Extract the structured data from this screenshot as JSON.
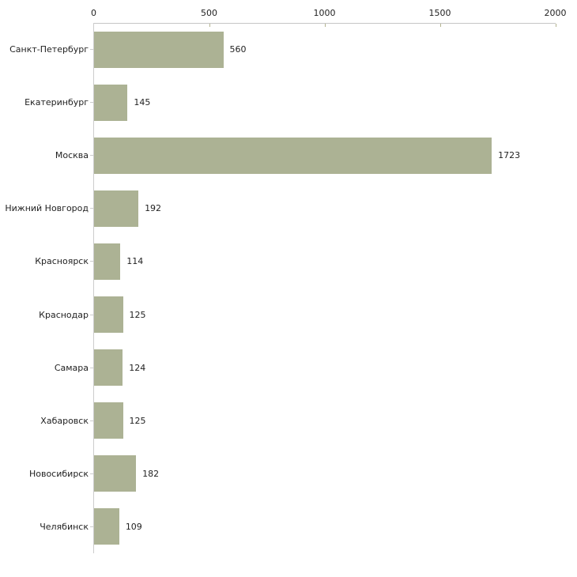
{
  "chart_data": {
    "type": "bar",
    "orientation": "horizontal",
    "title": "",
    "xlabel": "",
    "ylabel": "",
    "categories": [
      "Санкт-Петербург",
      "Екатеринбург",
      "Москва",
      "Нижний Новгород",
      "Красноярск",
      "Краснодар",
      "Самара",
      "Хабаровск",
      "Новосибирск",
      "Челябинск"
    ],
    "values": [
      560,
      145,
      1723,
      192,
      114,
      125,
      124,
      125,
      182,
      109
    ],
    "value_labels": [
      "560",
      "145",
      "1723",
      "192",
      "114",
      "125",
      "124",
      "125",
      "182",
      "109"
    ],
    "xlim": [
      0,
      2000
    ],
    "x_ticks": [
      0,
      500,
      1000,
      1500,
      2000
    ],
    "x_tick_labels": [
      "0",
      "500",
      "1000",
      "1500",
      "2000"
    ],
    "grid": false,
    "legend": null,
    "axis_position": "top",
    "colors": {
      "bar_fill": "#acb294",
      "axis_line": "#c6c6c6",
      "tick_mark": "#b3b390",
      "category_tick": "#cccccc",
      "text": "#222222",
      "background": "#ffffff"
    }
  }
}
